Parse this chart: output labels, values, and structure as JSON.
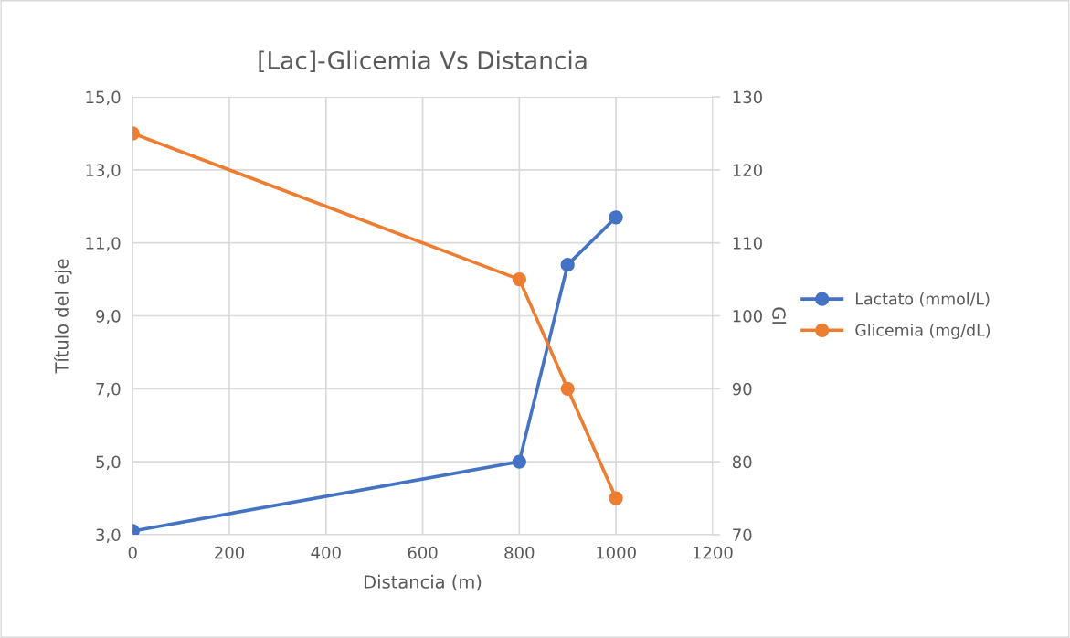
{
  "chart_data": {
    "type": "line",
    "title": "[Lac]-Glicemia Vs Distancia",
    "xlabel": "Distancia (m)",
    "ylabel": "Título del eje",
    "y2label": "Gl",
    "series": [
      {
        "name": "Lactato (mmol/L)",
        "color": "#4472c4",
        "x": [
          0,
          800,
          900,
          1000
        ],
        "values": [
          3.1,
          5.0,
          10.4,
          11.7
        ]
      },
      {
        "name": "Glicemia (mg/dL)",
        "color": "#ed7d31",
        "x": [
          0,
          800,
          900,
          1000
        ],
        "values": [
          125,
          105,
          90,
          75
        ],
        "axis": "y2"
      }
    ],
    "xlim": [
      0,
      1200
    ],
    "xticks": [
      0,
      200,
      400,
      600,
      800,
      1000,
      1200
    ],
    "ylim": [
      3,
      15
    ],
    "yticks": [
      {
        "value": 3,
        "label": "3,0"
      },
      {
        "value": 5,
        "label": "5,0"
      },
      {
        "value": 7,
        "label": "7,0"
      },
      {
        "value": 9,
        "label": "9,0"
      },
      {
        "value": 11,
        "label": "11,0"
      },
      {
        "value": 13,
        "label": "13,0"
      },
      {
        "value": 15,
        "label": "15,0"
      }
    ],
    "y2lim": [
      70,
      130
    ],
    "y2ticks": [
      70,
      80,
      90,
      100,
      110,
      120,
      130
    ],
    "grid": true,
    "legend": "right",
    "marker": "circle",
    "line_style": "solid"
  }
}
